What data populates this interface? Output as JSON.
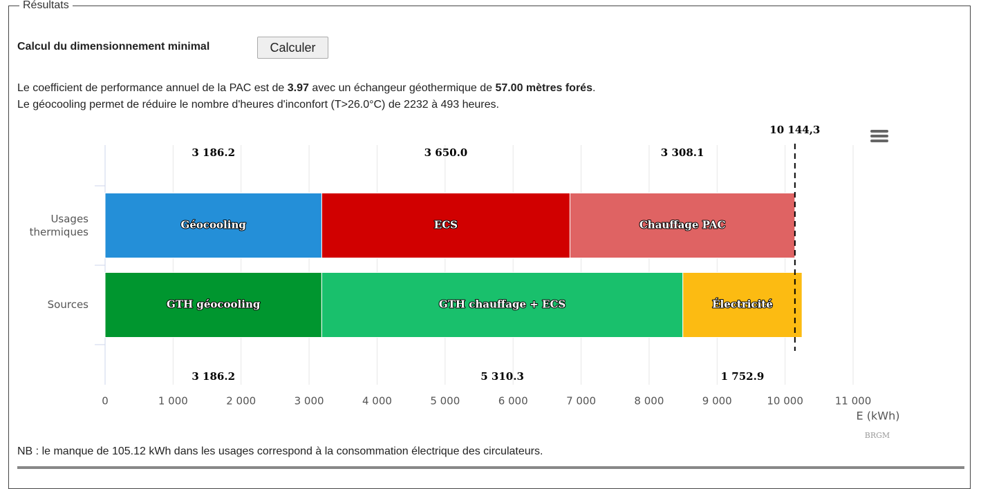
{
  "fieldset": {
    "legend": "Résultats"
  },
  "heading": "Calcul du dimensionnement minimal",
  "button": "Calculer",
  "summary": [
    "Le coefficient de performance annuel de la PAC est de ",
    "3.97",
    " avec un échangeur géothermique de ",
    "57.00 mètres forés",
    "."
  ],
  "comfort": "Le géocooling permet de réduire le nombre d'heures d'inconfort (T>26.0°C) de 2232 à 493 heures.",
  "chart_data": {
    "type": "bar",
    "orientation": "horizontal",
    "stacked": true,
    "categories": [
      "Usages thermiques",
      "Sources"
    ],
    "series": [
      {
        "name": "Géocooling",
        "color": "#248fd8",
        "values": [
          3186.2,
          null
        ],
        "value_labels": [
          "3 186.2",
          null
        ]
      },
      {
        "name": "ECS",
        "color": "#d10000",
        "values": [
          3650.0,
          null
        ],
        "value_labels": [
          "3 650.0",
          null
        ]
      },
      {
        "name": "Chauffage PAC",
        "color": "#df6363",
        "values": [
          3308.1,
          null
        ],
        "value_labels": [
          "3 308.1",
          null
        ]
      },
      {
        "name": "GTH géocooling",
        "color": "#00962f",
        "values": [
          null,
          3186.2
        ],
        "value_labels": [
          null,
          "3 186.2"
        ]
      },
      {
        "name": "GTH chauffage + ECS",
        "color": "#19c06c",
        "values": [
          null,
          5310.3
        ],
        "value_labels": [
          null,
          "5 310.3"
        ]
      },
      {
        "name": "Électricité",
        "color": "#fcbb12",
        "values": [
          null,
          1752.9
        ],
        "value_labels": [
          null,
          "1 752.9"
        ]
      }
    ],
    "xlim": [
      0,
      11000
    ],
    "xticks": [
      0,
      {
        "value": 1000,
        "label": "1 000"
      },
      {
        "value": 2000,
        "label": "2 000"
      },
      {
        "value": 3000,
        "label": "3 000"
      },
      {
        "value": 4000,
        "label": "4 000"
      },
      {
        "value": 5000,
        "label": "5 000"
      },
      {
        "value": 6000,
        "label": "6 000"
      },
      {
        "value": 7000,
        "label": "7 000"
      },
      {
        "value": 8000,
        "label": "8 000"
      },
      {
        "value": 9000,
        "label": "9 000"
      },
      {
        "value": 10000,
        "label": "10 000"
      },
      {
        "value": 11000,
        "label": "11 000"
      }
    ],
    "x_label": "E (kWh)",
    "plot_line": {
      "value": 10144.3,
      "label": "10 144,3"
    },
    "credits": "BRGM",
    "grid": true
  },
  "note": "NB : le manque de 105.12 kWh dans les usages correspond à la consommation électrique des circulateurs."
}
